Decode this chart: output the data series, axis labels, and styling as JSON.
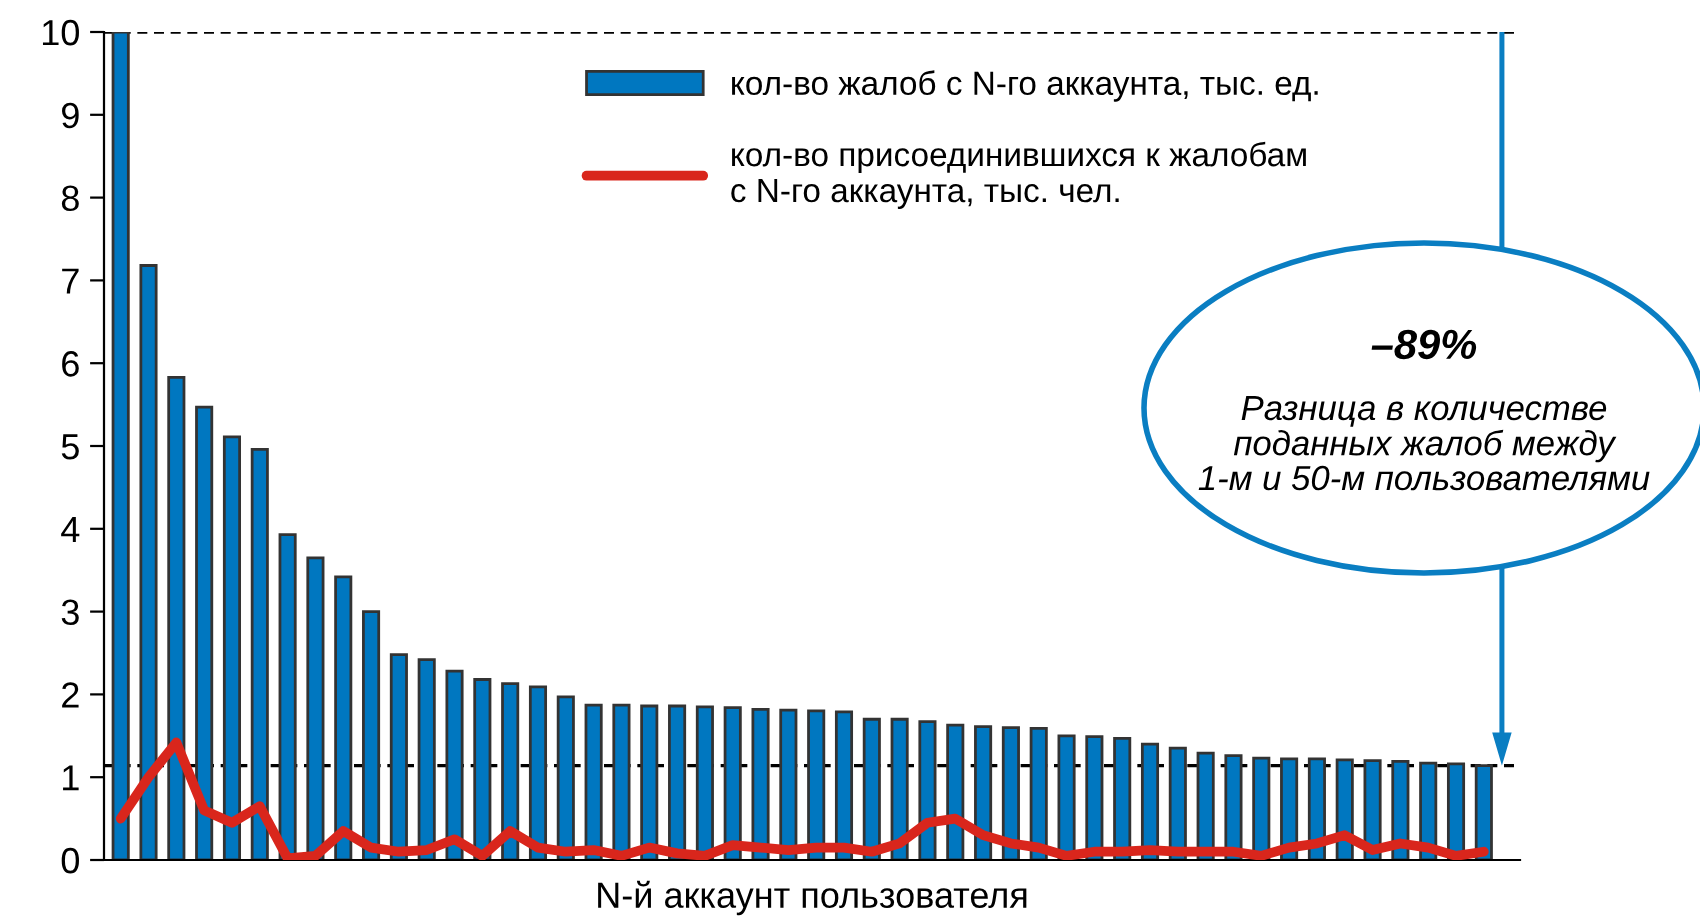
{
  "chart_data": {
    "type": "bar",
    "xlabel": "N-й аккаунт пользователя",
    "categories": [
      null,
      null,
      null,
      null,
      null,
      null,
      null,
      null,
      null,
      null,
      null,
      null,
      null,
      null,
      null,
      null,
      null,
      null,
      null,
      null,
      null,
      null,
      null,
      null,
      null,
      null,
      null,
      null,
      null,
      null,
      null,
      null,
      null,
      null,
      null,
      null,
      null,
      null,
      null,
      null,
      null,
      null,
      null,
      null,
      null,
      null,
      null,
      null,
      null,
      null
    ],
    "series": [
      {
        "name": "кол-во жалоб с N-го аккаунта, тыс. ед.",
        "color": "#0077c0",
        "values": [
          10,
          7.18,
          5.83,
          5.47,
          5.11,
          4.96,
          3.93,
          3.65,
          3.42,
          3.0,
          2.48,
          2.42,
          2.28,
          2.18,
          2.13,
          2.09,
          1.97,
          1.87,
          1.87,
          1.86,
          1.86,
          1.85,
          1.84,
          1.82,
          1.81,
          1.8,
          1.79,
          1.7,
          1.7,
          1.67,
          1.63,
          1.61,
          1.6,
          1.59,
          1.5,
          1.49,
          1.47,
          1.4,
          1.35,
          1.29,
          1.26,
          1.23,
          1.22,
          1.22,
          1.21,
          1.2,
          1.19,
          1.17,
          1.16,
          1.14
        ]
      },
      {
        "name": "кол-во присоединившихся к жалобам\nс N-го аккаунта, тыс. чел.",
        "color": "#d9261c",
        "type": "line",
        "values": [
          0.5,
          1.0,
          1.42,
          0.6,
          0.45,
          0.65,
          0.02,
          0.05,
          0.35,
          0.15,
          0.1,
          0.12,
          0.25,
          0.05,
          0.35,
          0.15,
          0.1,
          0.12,
          0.05,
          0.15,
          0.08,
          0.05,
          0.18,
          0.15,
          0.12,
          0.15,
          0.15,
          0.1,
          0.2,
          0.45,
          0.5,
          0.3,
          0.2,
          0.15,
          0.05,
          0.1,
          0.1,
          0.12,
          0.1,
          0.1,
          0.1,
          0.05,
          0.15,
          0.2,
          0.3,
          0.12,
          0.2,
          0.15,
          0.05,
          0.1
        ]
      }
    ],
    "ylim": [
      0,
      10
    ],
    "yticks": [
      0,
      1,
      2,
      3,
      4,
      5,
      6,
      7,
      8,
      9,
      10
    ],
    "grid": false,
    "legend": "top",
    "ref_lines": [
      {
        "axis": "y",
        "value": 10,
        "color": "#000000",
        "line_style": "dashed"
      },
      {
        "axis": "y",
        "value": 1.14,
        "color": "#000000",
        "line_style": "dashed"
      }
    ],
    "annotations": [
      "–89%",
      "Разница в количестве\nподанных жалоб между\n1-м и 50-м пользователями"
    ]
  }
}
